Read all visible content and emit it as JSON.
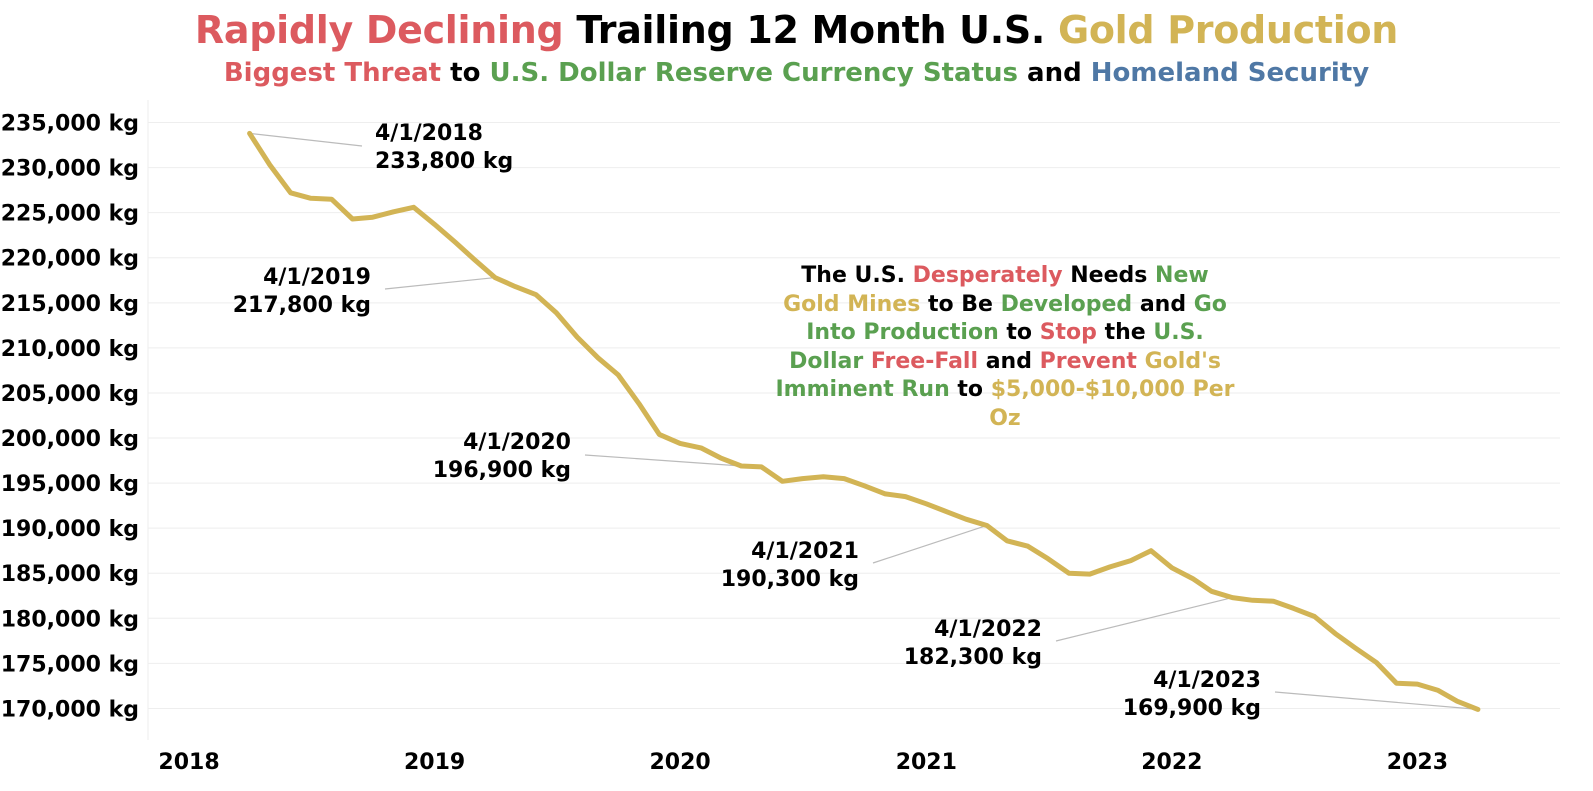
{
  "title": {
    "part1": "Rapidly Declining",
    "part2": "Trailing 12 Month U.S.",
    "part3": "Gold Production"
  },
  "subtitle": {
    "part1": "Biggest Threat",
    "part2": "to",
    "part3": "U.S. Dollar Reserve Currency Status",
    "part4": "and",
    "part5": "Homeland Security"
  },
  "callout": {
    "segments": [
      {
        "text": "The U.S. ",
        "color": "black"
      },
      {
        "text": "Desperately",
        "color": "red"
      },
      {
        "text": " Needs ",
        "color": "black"
      },
      {
        "text": "New",
        "color": "green"
      },
      {
        "text": " ",
        "color": "black"
      },
      {
        "text": "Gold Mines",
        "color": "gold"
      },
      {
        "text": " to Be ",
        "color": "black"
      },
      {
        "text": "Developed",
        "color": "green"
      },
      {
        "text": " and ",
        "color": "black"
      },
      {
        "text": "Go Into Production",
        "color": "green"
      },
      {
        "text": " to ",
        "color": "black"
      },
      {
        "text": "Stop",
        "color": "red"
      },
      {
        "text": " the ",
        "color": "black"
      },
      {
        "text": "U.S. Dollar",
        "color": "green"
      },
      {
        "text": " ",
        "color": "black"
      },
      {
        "text": "Free-Fall",
        "color": "red"
      },
      {
        "text": " and ",
        "color": "black"
      },
      {
        "text": "Prevent",
        "color": "red"
      },
      {
        "text": " ",
        "color": "black"
      },
      {
        "text": "Gold's",
        "color": "gold"
      },
      {
        "text": " ",
        "color": "black"
      },
      {
        "text": "Imminent Run",
        "color": "green"
      },
      {
        "text": " to ",
        "color": "black"
      },
      {
        "text": "$5,000-$10,000 Per Oz",
        "color": "gold"
      }
    ]
  },
  "colors": {
    "line": "#d2b455",
    "red": "#dc5a5f",
    "green": "#5aa050",
    "gold": "#d2b455",
    "blue": "#4f78a5",
    "grid": "#eeeeee",
    "leader": "#bbbbbb"
  },
  "chart_data": {
    "type": "line",
    "x_axis": {
      "type": "date",
      "ticks": [
        "2018",
        "2019",
        "2020",
        "2021",
        "2022",
        "2023"
      ],
      "range": [
        "2017-11-01",
        "2023-08-01"
      ]
    },
    "y_axis": {
      "ticks": [
        235000,
        230000,
        225000,
        220000,
        215000,
        210000,
        205000,
        200000,
        195000,
        190000,
        185000,
        180000,
        175000,
        170000
      ],
      "tick_labels": [
        "235,000 kg",
        "230,000 kg",
        "225,000 kg",
        "220,000 kg",
        "215,000 kg",
        "210,000 kg",
        "205,000 kg",
        "200,000 kg",
        "195,000 kg",
        "190,000 kg",
        "185,000 kg",
        "180,000 kg",
        "175,000 kg",
        "170,000 kg"
      ],
      "range": [
        166500,
        237500
      ]
    },
    "grid": true,
    "series": [
      {
        "x": [
          "2018-04-01",
          "2018-05-01",
          "2018-06-01",
          "2018-07-01",
          "2018-08-01",
          "2018-09-01",
          "2018-10-01",
          "2018-11-01",
          "2018-12-01",
          "2019-01-01",
          "2019-02-01",
          "2019-03-01",
          "2019-04-01",
          "2019-05-01",
          "2019-06-01",
          "2019-07-01",
          "2019-08-01",
          "2019-09-01",
          "2019-10-01",
          "2019-11-01",
          "2019-12-01",
          "2020-01-01",
          "2020-02-01",
          "2020-03-01",
          "2020-04-01",
          "2020-05-01",
          "2020-06-01",
          "2020-07-01",
          "2020-08-01",
          "2020-09-01",
          "2020-10-01",
          "2020-11-01",
          "2020-12-01",
          "2021-01-01",
          "2021-02-01",
          "2021-03-01",
          "2021-04-01",
          "2021-05-01",
          "2021-06-01",
          "2021-07-01",
          "2021-08-01",
          "2021-09-01",
          "2021-10-01",
          "2021-11-01",
          "2021-12-01",
          "2022-01-01",
          "2022-02-01",
          "2022-03-01",
          "2022-04-01",
          "2022-05-01",
          "2022-06-01",
          "2022-07-01",
          "2022-08-01",
          "2022-09-01",
          "2022-10-01",
          "2022-11-01",
          "2022-12-01",
          "2023-01-01",
          "2023-02-01",
          "2023-03-01",
          "2023-04-01"
        ],
        "y": [
          233800,
          230300,
          227200,
          226600,
          226500,
          224300,
          224500,
          225100,
          225600,
          223700,
          221700,
          219800,
          217800,
          216800,
          215900,
          213900,
          211200,
          208900,
          207000,
          203800,
          200400,
          199400,
          198900,
          197800,
          196900,
          196800,
          195200,
          195500,
          195700,
          195500,
          194700,
          193800,
          193500,
          192700,
          191800,
          191000,
          190300,
          188600,
          188000,
          186600,
          185000,
          184900,
          185700,
          186400,
          187500,
          185600,
          184400,
          183000,
          182300,
          182000,
          181900,
          181100,
          180200,
          178300,
          176700,
          175100,
          172800,
          172700,
          172000,
          170800,
          169900
        ]
      }
    ],
    "annotations": [
      {
        "date": "4/1/2018",
        "value": "233,800 kg",
        "x": "2018-04-01",
        "y": 233800
      },
      {
        "date": "4/1/2019",
        "value": "217,800 kg",
        "x": "2019-04-01",
        "y": 217800
      },
      {
        "date": "4/1/2020",
        "value": "196,900 kg",
        "x": "2020-04-01",
        "y": 196900
      },
      {
        "date": "4/1/2021",
        "value": "190,300 kg",
        "x": "2021-04-01",
        "y": 190300
      },
      {
        "date": "4/1/2022",
        "value": "182,300 kg",
        "x": "2022-04-01",
        "y": 182300
      },
      {
        "date": "4/1/2023",
        "value": "169,900 kg",
        "x": "2023-04-01",
        "y": 169900
      }
    ]
  }
}
